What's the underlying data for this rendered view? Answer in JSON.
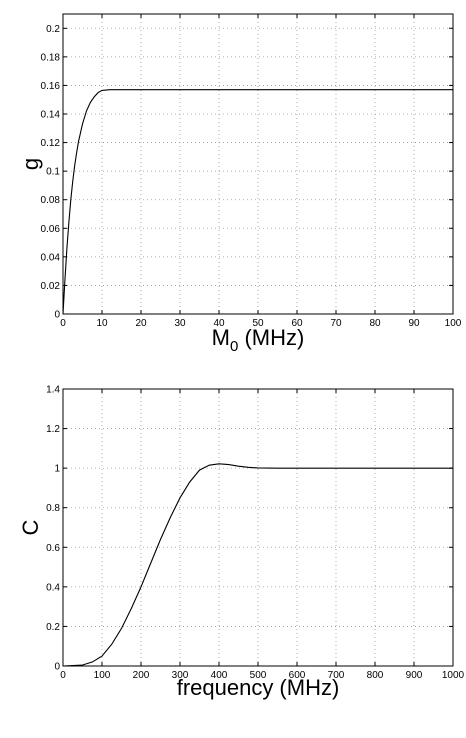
{
  "chart_data": [
    {
      "type": "line",
      "title": "",
      "xlabel_main": "M",
      "xlabel_subscript": "0",
      "xlabel_unit": " (MHz)",
      "ylabel": "g",
      "xlim": [
        0,
        100
      ],
      "ylim": [
        0,
        0.21
      ],
      "xticks": [
        0,
        10,
        20,
        30,
        40,
        50,
        60,
        70,
        80,
        90,
        100
      ],
      "yticks": [
        0,
        0.02,
        0.04,
        0.06,
        0.08,
        0.1,
        0.12,
        0.14,
        0.16,
        0.18,
        0.2
      ],
      "grid": true,
      "legend": "none",
      "series": [
        {
          "color": "#000000",
          "x": [
            0,
            0.5,
            1,
            1.5,
            2,
            2.5,
            3,
            3.5,
            4,
            5,
            6,
            7,
            8,
            9,
            10,
            12,
            15,
            20,
            30,
            40,
            50,
            60,
            70,
            80,
            90,
            100
          ],
          "y": [
            0,
            0.024,
            0.046,
            0.064,
            0.08,
            0.093,
            0.104,
            0.113,
            0.121,
            0.133,
            0.142,
            0.148,
            0.152,
            0.155,
            0.1565,
            0.157,
            0.157,
            0.157,
            0.157,
            0.157,
            0.157,
            0.157,
            0.157,
            0.157,
            0.157,
            0.157
          ]
        }
      ]
    },
    {
      "type": "line",
      "title": "",
      "xlabel": "frequency (MHz)",
      "ylabel": "C",
      "xlim": [
        0,
        1000
      ],
      "ylim": [
        0,
        1.4
      ],
      "xticks": [
        0,
        100,
        200,
        300,
        400,
        500,
        600,
        700,
        800,
        900,
        1000
      ],
      "yticks": [
        0,
        0.2,
        0.4,
        0.6,
        0.8,
        1,
        1.2,
        1.4
      ],
      "grid": true,
      "legend": "none",
      "series": [
        {
          "color": "#000000",
          "x": [
            0,
            50,
            75,
            100,
            125,
            150,
            175,
            200,
            225,
            250,
            275,
            300,
            325,
            350,
            375,
            400,
            425,
            450,
            475,
            500,
            550,
            600,
            700,
            800,
            900,
            1000
          ],
          "y": [
            0,
            0.005,
            0.02,
            0.05,
            0.11,
            0.19,
            0.29,
            0.4,
            0.52,
            0.64,
            0.75,
            0.85,
            0.93,
            0.99,
            1.015,
            1.022,
            1.018,
            1.01,
            1.004,
            1.001,
            1.0,
            1.0,
            1.0,
            1.0,
            1.0,
            1.0
          ]
        }
      ]
    }
  ]
}
